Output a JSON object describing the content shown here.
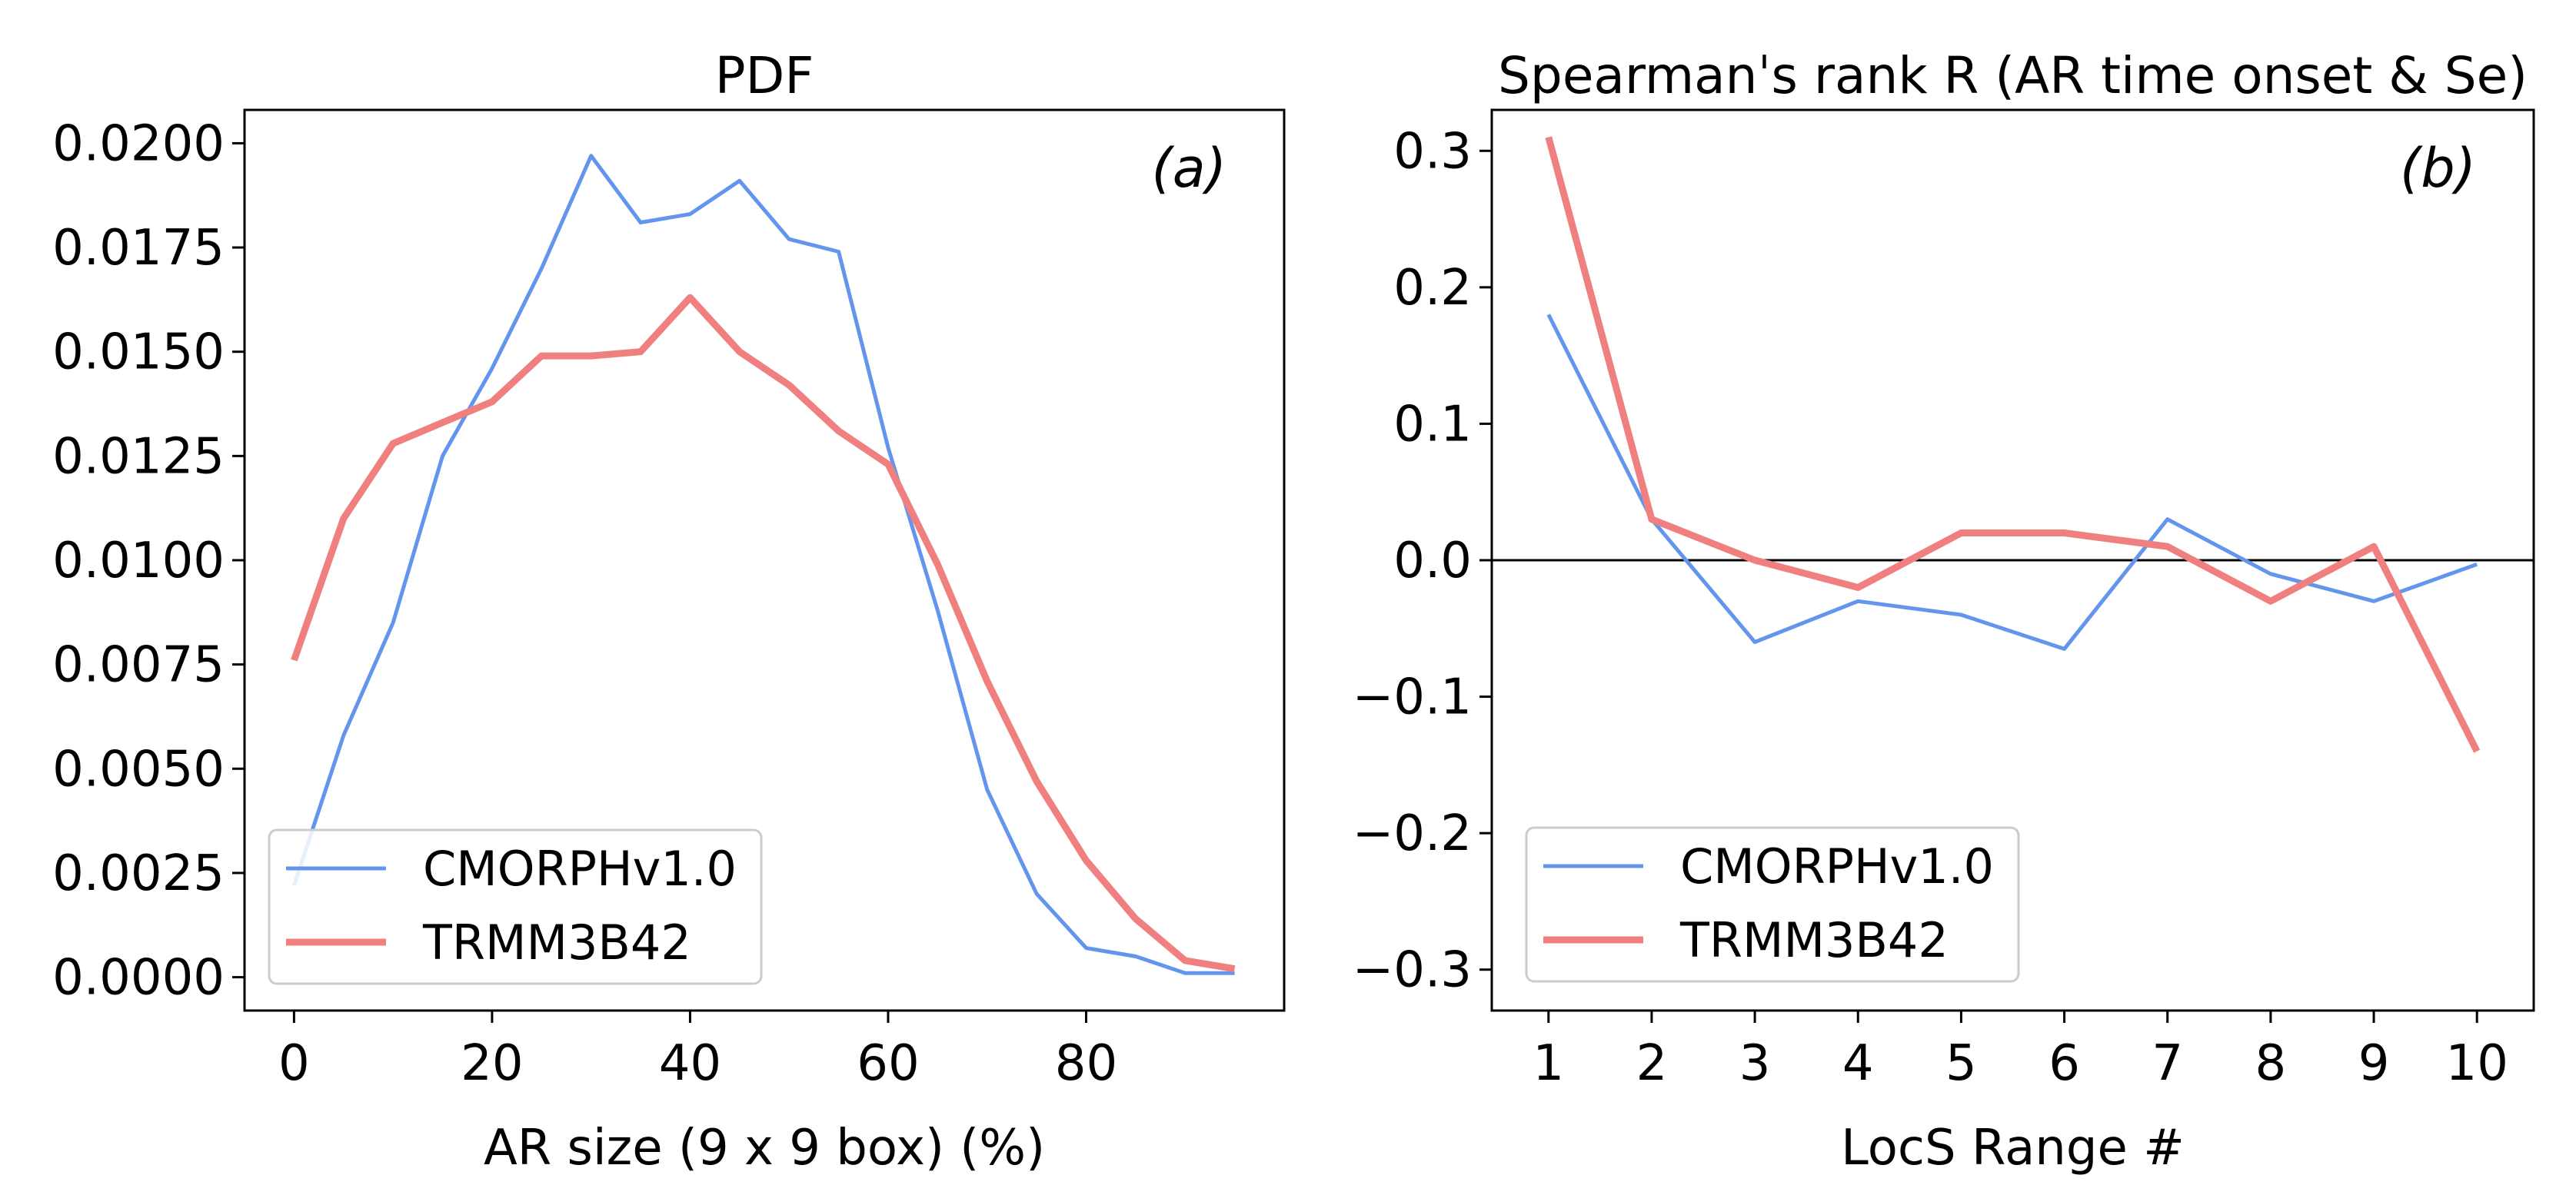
{
  "colors": {
    "cmorph": "#6495ED",
    "trmm": "#F08080",
    "axes": "#000000",
    "legend_border": "#cccccc"
  },
  "chart_data": [
    {
      "type": "line",
      "title": "PDF",
      "panel_tag": "(a)",
      "xlabel": "AR size (9 x 9 box) (%)",
      "ylabel": "",
      "xlim": [
        -5,
        100
      ],
      "ylim": [
        -0.0008,
        0.0208
      ],
      "xticks": [
        0,
        20,
        40,
        60,
        80
      ],
      "xtick_labels": [
        "0",
        "20",
        "40",
        "60",
        "80"
      ],
      "yticks": [
        0.0,
        0.0025,
        0.005,
        0.0075,
        0.01,
        0.0125,
        0.015,
        0.0175,
        0.02
      ],
      "ytick_labels": [
        "0.0000",
        "0.0025",
        "0.0050",
        "0.0075",
        "0.0100",
        "0.0125",
        "0.0150",
        "0.0175",
        "0.0200"
      ],
      "legend_position": "lower-left",
      "x": [
        0,
        5,
        10,
        15,
        20,
        25,
        30,
        35,
        40,
        45,
        50,
        55,
        60,
        65,
        70,
        75,
        80,
        85,
        90,
        95
      ],
      "series": [
        {
          "name": "CMORPHv1.0",
          "color": "#6495ED",
          "width": 5,
          "values": [
            0.0022,
            0.0058,
            0.0085,
            0.0125,
            0.0146,
            0.017,
            0.0197,
            0.0181,
            0.0183,
            0.0191,
            0.0177,
            0.0174,
            0.0127,
            0.0088,
            0.0045,
            0.002,
            0.0007,
            0.0005,
            0.0001,
            0.0001
          ]
        },
        {
          "name": "TRMM3B42",
          "color": "#F08080",
          "width": 9,
          "values": [
            0.0076,
            0.011,
            0.0128,
            0.0133,
            0.0138,
            0.0149,
            0.0149,
            0.015,
            0.0163,
            0.015,
            0.0142,
            0.0131,
            0.0123,
            0.0099,
            0.0071,
            0.0047,
            0.0028,
            0.0014,
            0.0004,
            0.0002
          ]
        }
      ]
    },
    {
      "type": "line",
      "title": "Spearmanˈs rank R (AR time onset & Se)",
      "panel_tag": "(b)",
      "xlabel": "LocS  Range #",
      "ylabel": "",
      "xlim": [
        0.45,
        10.55
      ],
      "ylim": [
        -0.33,
        0.33
      ],
      "xticks": [
        1,
        2,
        3,
        4,
        5,
        6,
        7,
        8,
        9,
        10
      ],
      "xtick_labels": [
        "1",
        "2",
        "3",
        "4",
        "5",
        "6",
        "7",
        "8",
        "9",
        "10"
      ],
      "yticks": [
        -0.3,
        -0.2,
        -0.1,
        0.0,
        0.1,
        0.2,
        0.3
      ],
      "ytick_labels": [
        "−0.3",
        "−0.2",
        "−0.1",
        "0.0",
        "0.1",
        "0.2",
        "0.3"
      ],
      "zero_line": true,
      "legend_position": "lower-left",
      "x": [
        1,
        2,
        3,
        4,
        5,
        6,
        7,
        8,
        9,
        10
      ],
      "series": [
        {
          "name": "CMORPHv1.0",
          "color": "#6495ED",
          "width": 5,
          "values": [
            0.18,
            0.03,
            -0.06,
            -0.03,
            -0.04,
            -0.065,
            0.03,
            -0.01,
            -0.03,
            -0.003
          ]
        },
        {
          "name": "TRMM3B42",
          "color": "#F08080",
          "width": 9,
          "values": [
            0.31,
            0.03,
            0.0,
            -0.02,
            0.02,
            0.02,
            0.01,
            -0.03,
            0.01,
            -0.14
          ]
        }
      ]
    }
  ]
}
